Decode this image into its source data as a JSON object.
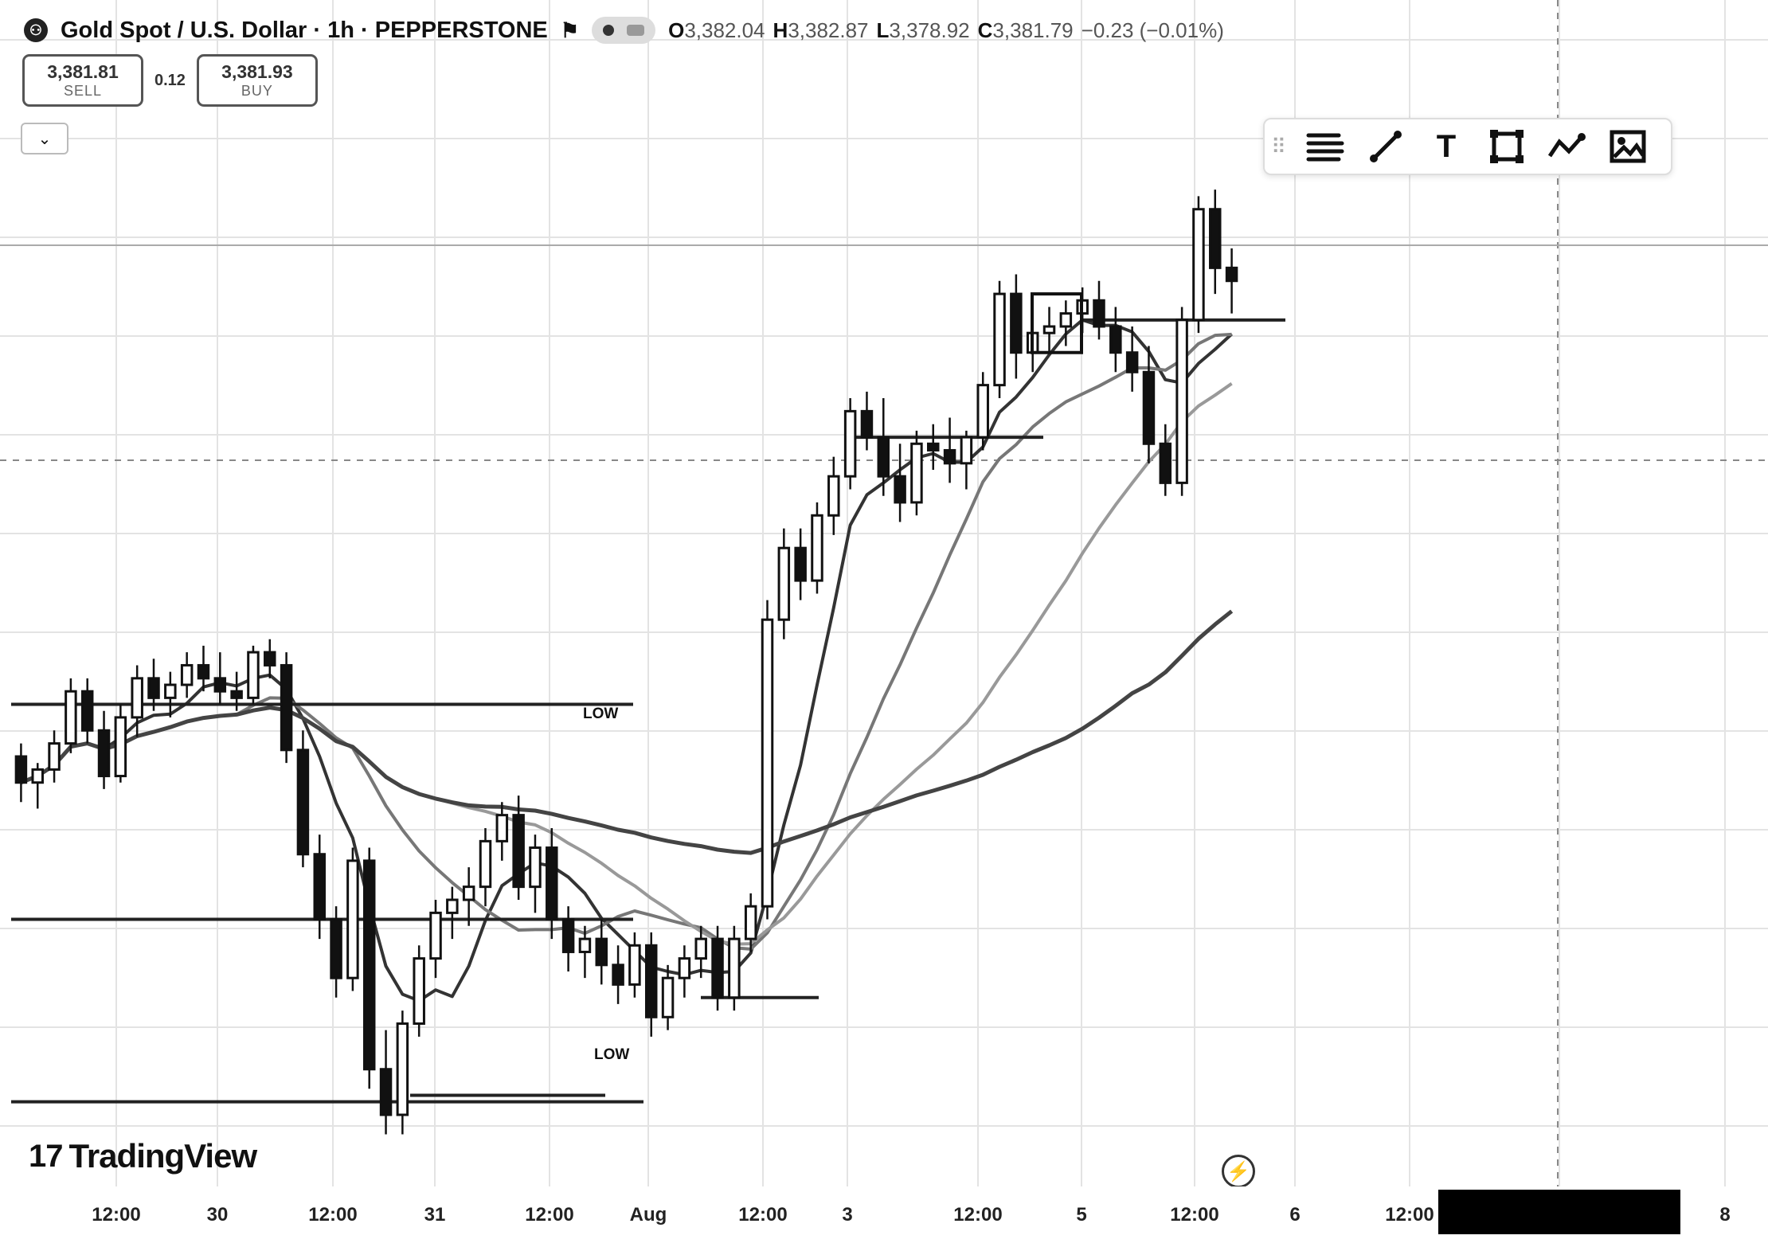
{
  "header": {
    "title": "Gold Spot / U.S. Dollar · 1h · PEPPERSTONE",
    "ohlc": {
      "o_label": "O",
      "o_value": "3,382.04",
      "h_label": "H",
      "h_value": "3,382.87",
      "l_label": "L",
      "l_value": "3,378.92",
      "c_label": "C",
      "c_value": "3,381.79",
      "change": "−0.23 (−0.01%)"
    }
  },
  "trade": {
    "sell_price": "3,381.81",
    "sell_label": "SELL",
    "spread": "0.12",
    "buy_price": "3,381.93",
    "buy_label": "BUY"
  },
  "toolbar": {
    "icons": [
      "grip-icon",
      "multiline-icon",
      "trendline-icon",
      "text-icon",
      "rectangle-icon",
      "path-icon",
      "image-icon"
    ],
    "text_glyph": "T"
  },
  "annotations": {
    "low_label_1": "LOW",
    "low_label_2": "LOW"
  },
  "logo": {
    "text": "TradingView",
    "mark": "17"
  },
  "colors": {
    "background": "#ffffff",
    "candle": "#111111",
    "grid": "#d9d9d9"
  },
  "chart_data": {
    "type": "candlestick",
    "x_ticks": [
      "12:00",
      "30",
      "12:00",
      "31",
      "12:00",
      "Aug",
      "12:00",
      "3",
      "12:00",
      "5",
      "12:00",
      "6",
      "12:00",
      "8"
    ],
    "candles_approx": [
      [
        3302,
        3306,
        3288,
        3294
      ],
      [
        3294,
        3300,
        3286,
        3298
      ],
      [
        3298,
        3310,
        3294,
        3306
      ],
      [
        3306,
        3326,
        3303,
        3322
      ],
      [
        3322,
        3326,
        3306,
        3310
      ],
      [
        3310,
        3316,
        3292,
        3296
      ],
      [
        3296,
        3318,
        3294,
        3314
      ],
      [
        3314,
        3330,
        3308,
        3326
      ],
      [
        3326,
        3332,
        3316,
        3320
      ],
      [
        3320,
        3328,
        3314,
        3324
      ],
      [
        3324,
        3334,
        3320,
        3330
      ],
      [
        3330,
        3336,
        3322,
        3326
      ],
      [
        3326,
        3334,
        3318,
        3322
      ],
      [
        3322,
        3328,
        3316,
        3320
      ],
      [
        3320,
        3336,
        3318,
        3334
      ],
      [
        3334,
        3338,
        3326,
        3330
      ],
      [
        3330,
        3334,
        3300,
        3304
      ],
      [
        3304,
        3310,
        3268,
        3272
      ],
      [
        3272,
        3278,
        3246,
        3252
      ],
      [
        3252,
        3256,
        3228,
        3234
      ],
      [
        3234,
        3274,
        3230,
        3270
      ],
      [
        3270,
        3274,
        3200,
        3206
      ],
      [
        3206,
        3218,
        3186,
        3192
      ],
      [
        3192,
        3224,
        3186,
        3220
      ],
      [
        3220,
        3244,
        3216,
        3240
      ],
      [
        3240,
        3258,
        3234,
        3254
      ],
      [
        3254,
        3262,
        3246,
        3258
      ],
      [
        3258,
        3268,
        3250,
        3262
      ],
      [
        3262,
        3280,
        3256,
        3276
      ],
      [
        3276,
        3288,
        3270,
        3284
      ],
      [
        3284,
        3290,
        3258,
        3262
      ],
      [
        3262,
        3278,
        3254,
        3274
      ],
      [
        3274,
        3280,
        3246,
        3252
      ],
      [
        3252,
        3256,
        3236,
        3242
      ],
      [
        3242,
        3250,
        3234,
        3246
      ],
      [
        3246,
        3252,
        3232,
        3238
      ],
      [
        3238,
        3244,
        3226,
        3232
      ],
      [
        3232,
        3248,
        3228,
        3244
      ],
      [
        3244,
        3248,
        3216,
        3222
      ],
      [
        3222,
        3238,
        3218,
        3234
      ],
      [
        3234,
        3244,
        3228,
        3240
      ],
      [
        3240,
        3250,
        3234,
        3246
      ],
      [
        3246,
        3250,
        3224,
        3228
      ],
      [
        3228,
        3250,
        3224,
        3246
      ],
      [
        3246,
        3260,
        3242,
        3256
      ],
      [
        3256,
        3350,
        3252,
        3344
      ],
      [
        3344,
        3372,
        3338,
        3366
      ],
      [
        3366,
        3372,
        3350,
        3356
      ],
      [
        3356,
        3380,
        3352,
        3376
      ],
      [
        3376,
        3394,
        3370,
        3388
      ],
      [
        3388,
        3412,
        3384,
        3408
      ],
      [
        3408,
        3414,
        3396,
        3400
      ],
      [
        3400,
        3412,
        3382,
        3388
      ],
      [
        3388,
        3398,
        3374,
        3380
      ],
      [
        3380,
        3402,
        3376,
        3398
      ],
      [
        3398,
        3404,
        3390,
        3396
      ],
      [
        3396,
        3406,
        3386,
        3392
      ],
      [
        3392,
        3402,
        3384,
        3400
      ],
      [
        3400,
        3420,
        3396,
        3416
      ],
      [
        3416,
        3448,
        3412,
        3444
      ],
      [
        3444,
        3450,
        3418,
        3426
      ],
      [
        3426,
        3436,
        3420,
        3432
      ],
      [
        3432,
        3440,
        3426,
        3434
      ],
      [
        3434,
        3442,
        3428,
        3438
      ],
      [
        3438,
        3446,
        3432,
        3442
      ],
      [
        3442,
        3448,
        3430,
        3434
      ],
      [
        3434,
        3440,
        3420,
        3426
      ],
      [
        3426,
        3434,
        3414,
        3420
      ],
      [
        3420,
        3428,
        3392,
        3398
      ],
      [
        3398,
        3404,
        3382,
        3386
      ],
      [
        3386,
        3440,
        3382,
        3436
      ],
      [
        3436,
        3474,
        3432,
        3470
      ],
      [
        3470,
        3476,
        3444,
        3452
      ],
      [
        3452,
        3458,
        3438,
        3448
      ]
    ]
  }
}
